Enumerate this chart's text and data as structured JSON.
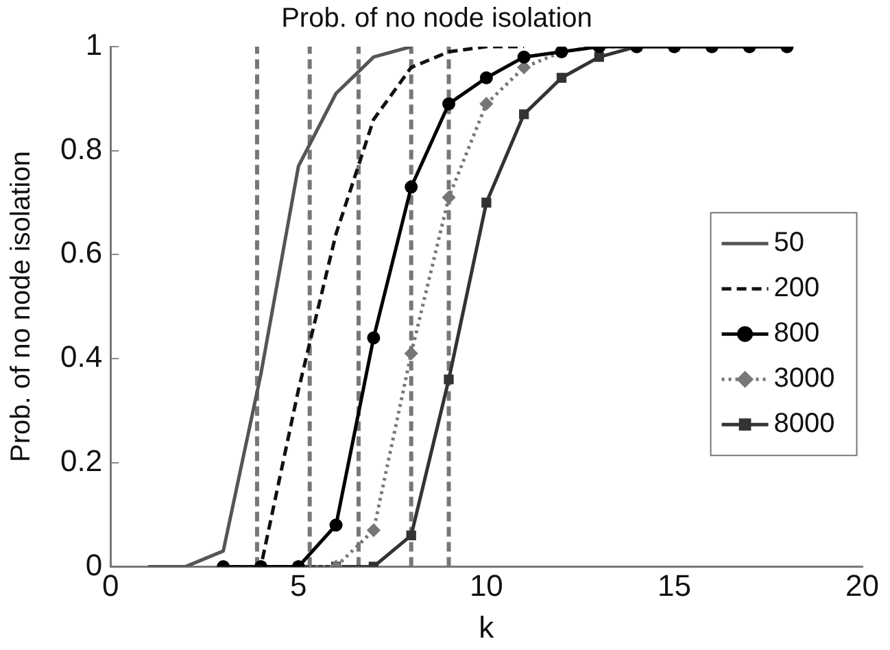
{
  "chart_data": {
    "type": "line",
    "title": "Prob. of no node isolation",
    "xlabel": "k",
    "ylabel": "Prob. of no node isolation",
    "xlim": [
      0,
      20
    ],
    "xticks": [
      0,
      5,
      10,
      15,
      20
    ],
    "ylim": [
      0,
      1
    ],
    "yticks": [
      0,
      0.2,
      0.4,
      0.6,
      0.8,
      1
    ],
    "grid": false,
    "legend": "right",
    "series": [
      {
        "name": "50",
        "color": "#555555",
        "marker": "none",
        "line_style": "solid",
        "x": [
          1,
          2,
          3,
          4,
          5,
          6,
          7,
          8
        ],
        "values": [
          0,
          0,
          0.03,
          0.37,
          0.77,
          0.91,
          0.98,
          1.0
        ]
      },
      {
        "name": "200",
        "color": "#111111",
        "marker": "none",
        "line_style": "dashed",
        "x": [
          3,
          4,
          5,
          6,
          7,
          8,
          9,
          10,
          11
        ],
        "values": [
          0,
          0,
          0.34,
          0.64,
          0.86,
          0.96,
          0.99,
          1.0,
          1.0
        ]
      },
      {
        "name": "800",
        "color": "#000000",
        "marker": "circle",
        "line_style": "solid",
        "x": [
          3,
          4,
          5,
          6,
          7,
          8,
          9,
          10,
          11,
          12,
          13,
          14,
          15,
          16,
          17,
          18
        ],
        "values": [
          0,
          0,
          0,
          0.08,
          0.44,
          0.73,
          0.89,
          0.94,
          0.98,
          0.99,
          1,
          1,
          1,
          1,
          1,
          1
        ]
      },
      {
        "name": "3000",
        "color": "#777777",
        "marker": "diamond",
        "line_style": "dotted",
        "x": [
          4,
          5,
          6,
          7,
          8,
          9,
          10,
          11,
          12,
          13,
          14,
          15,
          16,
          17,
          18
        ],
        "values": [
          0,
          0,
          0,
          0.07,
          0.41,
          0.71,
          0.89,
          0.96,
          0.99,
          1,
          1,
          1,
          1,
          1,
          1
        ]
      },
      {
        "name": "8000",
        "color": "#333333",
        "marker": "square",
        "line_style": "solid",
        "x": [
          4,
          5,
          6,
          7,
          8,
          9,
          10,
          11,
          12,
          13,
          14,
          15,
          16,
          17,
          18
        ],
        "values": [
          0,
          0,
          0,
          0,
          0.06,
          0.36,
          0.7,
          0.87,
          0.94,
          0.98,
          1,
          1,
          1,
          1,
          1
        ]
      }
    ],
    "ref_lines": [
      {
        "axis": "x",
        "value": 3.9,
        "color": "#777777",
        "line_style": "dashed"
      },
      {
        "axis": "x",
        "value": 5.3,
        "color": "#777777",
        "line_style": "dashed"
      },
      {
        "axis": "x",
        "value": 6.6,
        "color": "#777777",
        "line_style": "dashed"
      },
      {
        "axis": "x",
        "value": 8,
        "color": "#777777",
        "line_style": "dashed"
      },
      {
        "axis": "x",
        "value": 9,
        "color": "#777777",
        "line_style": "dashed"
      }
    ]
  }
}
